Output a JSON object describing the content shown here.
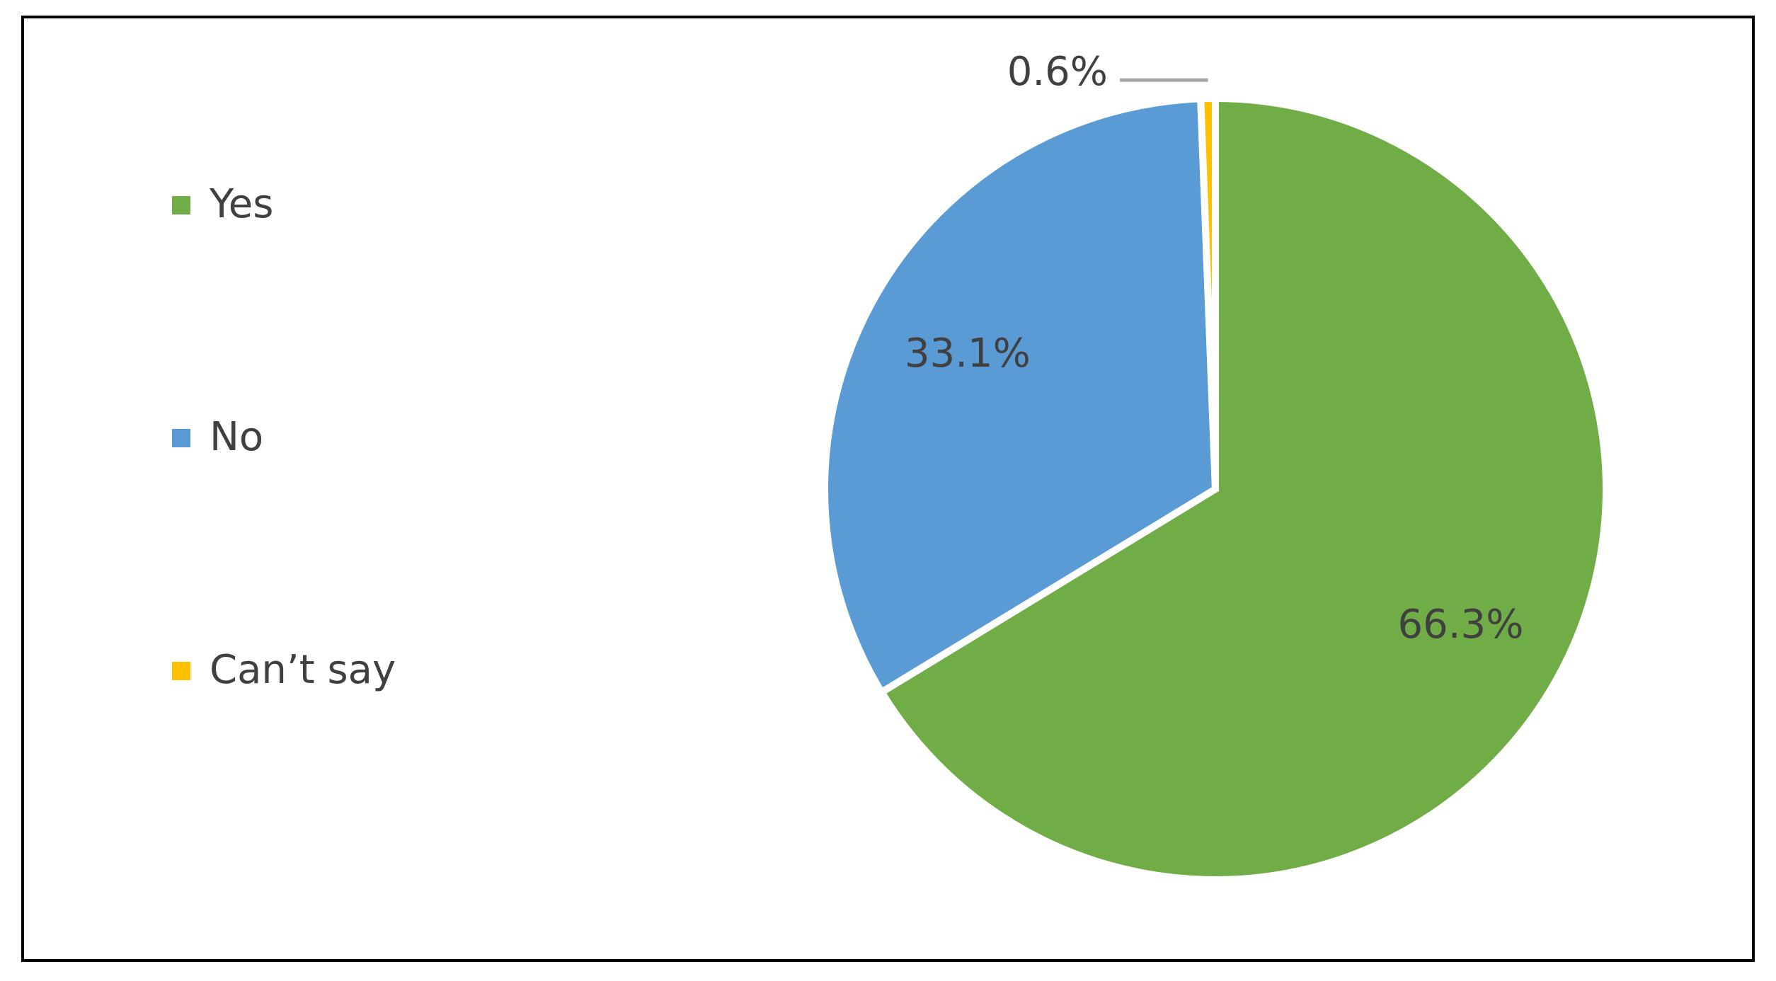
{
  "chart_data": {
    "type": "pie",
    "categories": [
      "Yes",
      "No",
      "Can’t say"
    ],
    "values": [
      66.3,
      33.1,
      0.6
    ],
    "value_labels": [
      "66.3%",
      "33.1%",
      "0.6%"
    ],
    "colors": [
      "#70ad47",
      "#5b9bd5",
      "#ffc000"
    ],
    "legend": "left"
  }
}
